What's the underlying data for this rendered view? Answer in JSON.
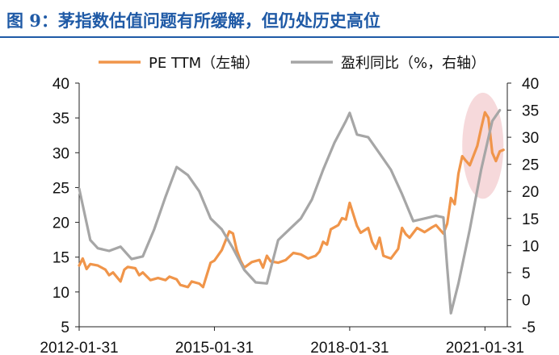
{
  "page": {
    "title": "图 9：茅指数估值问题有所缓解，但仍处历史高位"
  },
  "chart_data": {
    "type": "line",
    "title": "",
    "xlabel": "",
    "ylabel": "",
    "y2label": "",
    "x_ticks": [
      "2012-01-31",
      "2015-01-31",
      "2018-01-31",
      "2021-01-31"
    ],
    "x_range": [
      "2012-01-31",
      "2021-07-31"
    ],
    "ylim": [
      5,
      40
    ],
    "y_ticks": [
      5,
      10,
      15,
      20,
      25,
      30,
      35,
      40
    ],
    "y2lim": [
      -5,
      40
    ],
    "y2_ticks": [
      -5,
      0,
      5,
      10,
      15,
      20,
      25,
      30,
      35,
      40
    ],
    "grid": false,
    "legend_position": "top-center",
    "highlight": {
      "type": "ellipse",
      "color": "#f2c9cc",
      "x_range": [
        "2020-07-31",
        "2021-06-30"
      ],
      "y_range": [
        25,
        37
      ]
    },
    "series": [
      {
        "name": "PE TTM（左轴）",
        "axis": "left",
        "color": "#f0954a",
        "points": [
          [
            "2012-01-31",
            13.8
          ],
          [
            "2012-02-29",
            14.8
          ],
          [
            "2012-03-31",
            13.3
          ],
          [
            "2012-04-30",
            14.0
          ],
          [
            "2012-06-30",
            13.8
          ],
          [
            "2012-08-31",
            13.2
          ],
          [
            "2012-09-30",
            12.4
          ],
          [
            "2012-10-31",
            12.8
          ],
          [
            "2012-12-31",
            11.5
          ],
          [
            "2013-01-31",
            13.2
          ],
          [
            "2013-02-28",
            13.6
          ],
          [
            "2013-04-30",
            13.4
          ],
          [
            "2013-05-31",
            12.4
          ],
          [
            "2013-06-30",
            12.8
          ],
          [
            "2013-08-31",
            11.7
          ],
          [
            "2013-10-31",
            12.0
          ],
          [
            "2013-12-31",
            11.7
          ],
          [
            "2014-01-31",
            12.2
          ],
          [
            "2014-03-31",
            11.8
          ],
          [
            "2014-04-30",
            11.0
          ],
          [
            "2014-06-30",
            10.7
          ],
          [
            "2014-07-31",
            11.5
          ],
          [
            "2014-09-30",
            11.2
          ],
          [
            "2014-10-31",
            10.7
          ],
          [
            "2014-12-31",
            14.2
          ],
          [
            "2015-01-31",
            14.5
          ],
          [
            "2015-03-31",
            16.0
          ],
          [
            "2015-05-31",
            18.7
          ],
          [
            "2015-06-30",
            18.4
          ],
          [
            "2015-07-31",
            16.0
          ],
          [
            "2015-08-31",
            14.5
          ],
          [
            "2015-09-30",
            13.5
          ],
          [
            "2015-11-30",
            14.3
          ],
          [
            "2016-01-31",
            14.6
          ],
          [
            "2016-02-29",
            13.5
          ],
          [
            "2016-03-31",
            15.2
          ],
          [
            "2016-04-30",
            14.4
          ],
          [
            "2016-06-30",
            14.2
          ],
          [
            "2016-08-31",
            14.6
          ],
          [
            "2016-10-31",
            15.6
          ],
          [
            "2016-12-31",
            15.4
          ],
          [
            "2017-02-28",
            14.8
          ],
          [
            "2017-04-30",
            15.2
          ],
          [
            "2017-05-31",
            15.8
          ],
          [
            "2017-06-30",
            17.2
          ],
          [
            "2017-07-31",
            16.8
          ],
          [
            "2017-08-31",
            19.0
          ],
          [
            "2017-10-31",
            19.6
          ],
          [
            "2017-11-30",
            20.6
          ],
          [
            "2017-12-31",
            20.4
          ],
          [
            "2018-01-31",
            22.8
          ],
          [
            "2018-03-31",
            19.5
          ],
          [
            "2018-04-30",
            18.5
          ],
          [
            "2018-06-30",
            19.2
          ],
          [
            "2018-07-31",
            17.2
          ],
          [
            "2018-08-31",
            16.2
          ],
          [
            "2018-09-30",
            17.8
          ],
          [
            "2018-10-31",
            15.2
          ],
          [
            "2018-11-30",
            15.0
          ],
          [
            "2018-12-31",
            14.8
          ],
          [
            "2019-02-28",
            16.2
          ],
          [
            "2019-03-31",
            19.2
          ],
          [
            "2019-04-30",
            18.3
          ],
          [
            "2019-05-31",
            17.8
          ],
          [
            "2019-07-31",
            19.2
          ],
          [
            "2019-09-30",
            18.6
          ],
          [
            "2019-11-30",
            19.3
          ],
          [
            "2019-12-31",
            19.6
          ],
          [
            "2020-02-29",
            18.4
          ],
          [
            "2020-03-31",
            19.8
          ],
          [
            "2020-04-30",
            23.5
          ],
          [
            "2020-05-31",
            22.6
          ],
          [
            "2020-06-30",
            27.0
          ],
          [
            "2020-07-31",
            29.5
          ],
          [
            "2020-08-31",
            28.8
          ],
          [
            "2020-09-30",
            28.2
          ],
          [
            "2020-11-30",
            31.0
          ],
          [
            "2020-12-31",
            33.5
          ],
          [
            "2021-01-31",
            35.8
          ],
          [
            "2021-02-28",
            35.0
          ],
          [
            "2021-03-31",
            30.0
          ],
          [
            "2021-04-30",
            28.8
          ],
          [
            "2021-05-31",
            30.2
          ],
          [
            "2021-06-30",
            30.4
          ]
        ]
      },
      {
        "name": "盈利同比（%，右轴）",
        "axis": "right",
        "color": "#a6a6a6",
        "points": [
          [
            "2012-01-31",
            20.5
          ],
          [
            "2012-04-30",
            11.0
          ],
          [
            "2012-06-30",
            9.5
          ],
          [
            "2012-09-30",
            9.0
          ],
          [
            "2012-12-31",
            9.8
          ],
          [
            "2013-03-31",
            7.5
          ],
          [
            "2013-06-30",
            8.0
          ],
          [
            "2013-09-30",
            13.0
          ],
          [
            "2013-12-31",
            19.0
          ],
          [
            "2014-03-31",
            24.5
          ],
          [
            "2014-06-30",
            23.0
          ],
          [
            "2014-09-30",
            20.0
          ],
          [
            "2014-12-31",
            15.0
          ],
          [
            "2015-03-31",
            13.0
          ],
          [
            "2015-06-30",
            9.5
          ],
          [
            "2015-09-30",
            5.5
          ],
          [
            "2015-12-31",
            3.2
          ],
          [
            "2016-03-31",
            3.0
          ],
          [
            "2016-06-30",
            11.0
          ],
          [
            "2016-09-30",
            13.0
          ],
          [
            "2016-12-31",
            15.0
          ],
          [
            "2017-03-31",
            18.5
          ],
          [
            "2017-06-30",
            24.0
          ],
          [
            "2017-09-30",
            29.0
          ],
          [
            "2017-12-31",
            33.0
          ],
          [
            "2018-01-31",
            34.5
          ],
          [
            "2018-03-31",
            30.5
          ],
          [
            "2018-06-30",
            30.0
          ],
          [
            "2018-09-30",
            27.0
          ],
          [
            "2018-12-31",
            24.0
          ],
          [
            "2019-03-31",
            19.5
          ],
          [
            "2019-06-30",
            14.5
          ],
          [
            "2019-09-30",
            15.0
          ],
          [
            "2019-12-31",
            15.5
          ],
          [
            "2020-02-29",
            15.2
          ],
          [
            "2020-03-31",
            6.0
          ],
          [
            "2020-04-30",
            -2.5
          ],
          [
            "2020-06-30",
            3.0
          ],
          [
            "2020-09-30",
            13.0
          ],
          [
            "2020-12-31",
            24.0
          ],
          [
            "2021-03-31",
            33.0
          ],
          [
            "2021-05-31",
            35.0
          ]
        ]
      }
    ]
  }
}
